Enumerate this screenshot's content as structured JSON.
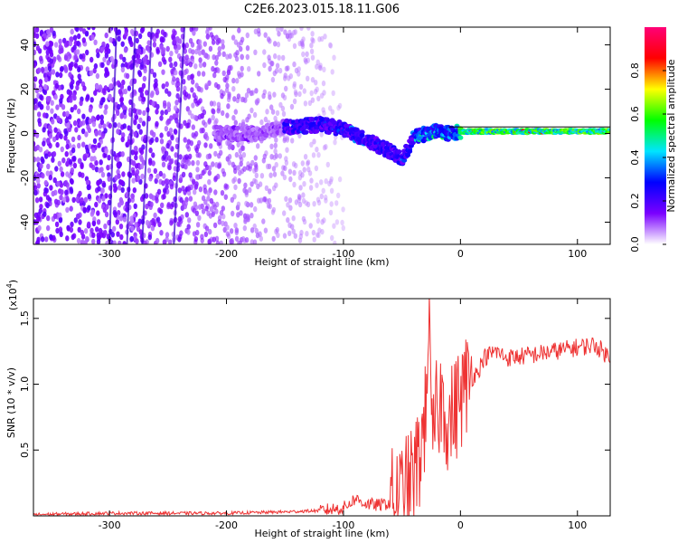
{
  "figure": {
    "title": "C2E6.2023.015.18.11.G06"
  },
  "chart_data": [
    {
      "type": "heatmap",
      "xlabel": "Height of straight line (km)",
      "ylabel": "Frequency (Hz)",
      "xlim": [
        -365,
        128
      ],
      "ylim": [
        -50,
        48
      ],
      "xticks": [
        -300,
        -200,
        -100,
        0,
        100
      ],
      "yticks": [
        -40,
        -20,
        0,
        20,
        40
      ],
      "colorbar": {
        "label": "Normalized spectral amplitude",
        "range": [
          0,
          1
        ],
        "ticks": [
          "0.0",
          "0.2",
          "0.4",
          "0.6",
          "0.8"
        ],
        "colors": [
          "#ffffff",
          "#7a00ff",
          "#0000ff",
          "#00e5ff",
          "#00ff00",
          "#ffff00",
          "#ff0000",
          "#ff0077"
        ]
      },
      "ridge": {
        "x": [
          -200,
          -170,
          -150,
          -120,
          -100,
          -80,
          -60,
          -50,
          -40,
          -30,
          -20,
          -10,
          0,
          50,
          100,
          128
        ],
        "y": [
          0,
          0,
          3,
          4,
          2,
          -3,
          -8,
          -12,
          -2,
          0,
          1,
          0,
          1,
          1,
          1,
          1
        ]
      },
      "grid": false
    },
    {
      "type": "line",
      "xlabel": "Height of straight line (km)",
      "ylabel": "SNR (10 * v/v)",
      "multiplier": "(x10",
      "multiplier_exp": "4",
      "xlim": [
        -365,
        128
      ],
      "ylim": [
        0,
        1.65
      ],
      "xticks": [
        -300,
        -200,
        -100,
        0,
        100
      ],
      "yticks": [
        "0.5",
        "1.0",
        "1.5"
      ],
      "series": [
        {
          "color": "#ee3333",
          "x": [
            -365,
            -300,
            -250,
            -200,
            -150,
            -120,
            -100,
            -90,
            -80,
            -70,
            -60,
            -50,
            -45,
            -40,
            -35,
            -30,
            -27,
            -25,
            -20,
            -15,
            -10,
            -5,
            0,
            5,
            10,
            15,
            20,
            30,
            40,
            60,
            80,
            100,
            115,
            128
          ],
          "y": [
            0.01,
            0.02,
            0.02,
            0.02,
            0.03,
            0.04,
            0.06,
            0.13,
            0.09,
            0.08,
            0.1,
            0.15,
            0.22,
            0.3,
            0.45,
            0.75,
            1.65,
            0.5,
            0.8,
            0.9,
            0.7,
            0.8,
            0.9,
            1.0,
            1.05,
            1.1,
            1.2,
            1.25,
            1.2,
            1.22,
            1.25,
            1.28,
            1.3,
            1.2
          ]
        }
      ],
      "grid": false
    }
  ]
}
